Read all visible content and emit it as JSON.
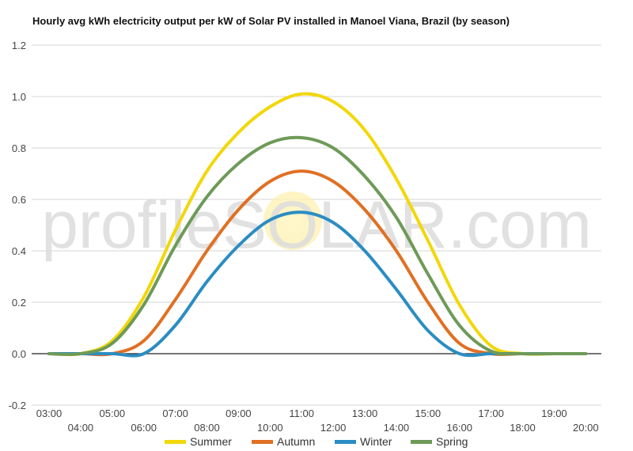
{
  "chart_data": {
    "type": "line",
    "title": "Hourly avg kWh electricity output per kW of Solar PV installed in Manoel Viana, Brazil (by season)",
    "watermark": "profileSOLAR.com",
    "ylim": [
      -0.2,
      1.2
    ],
    "yticks": [
      "-0.2",
      "0.0",
      "0.2",
      "0.4",
      "0.6",
      "0.8",
      "1.0",
      "1.2"
    ],
    "ytick_values": [
      -0.2,
      0.0,
      0.2,
      0.4,
      0.6,
      0.8,
      1.0,
      1.2
    ],
    "categories": [
      "03:00",
      "04:00",
      "05:00",
      "06:00",
      "07:00",
      "08:00",
      "09:00",
      "10:00",
      "11:00",
      "12:00",
      "13:00",
      "14:00",
      "15:00",
      "16:00",
      "17:00",
      "18:00",
      "19:00",
      "20:00"
    ],
    "grid": true,
    "legend_position": "bottom",
    "series": [
      {
        "name": "Summer",
        "color": "#f2d70a",
        "values": [
          0.0,
          0.0,
          0.05,
          0.22,
          0.48,
          0.71,
          0.86,
          0.96,
          1.01,
          0.98,
          0.87,
          0.68,
          0.44,
          0.19,
          0.03,
          0.0,
          0.0,
          0.0
        ]
      },
      {
        "name": "Autumn",
        "color": "#e07024",
        "values": [
          0.0,
          0.0,
          0.0,
          0.05,
          0.21,
          0.4,
          0.56,
          0.67,
          0.71,
          0.67,
          0.56,
          0.4,
          0.2,
          0.04,
          0.0,
          0.0,
          0.0,
          0.0
        ]
      },
      {
        "name": "Winter",
        "color": "#2b8dc3",
        "values": [
          0.0,
          0.0,
          0.0,
          0.0,
          0.11,
          0.28,
          0.42,
          0.52,
          0.55,
          0.51,
          0.4,
          0.25,
          0.09,
          0.0,
          0.0,
          0.0,
          0.0,
          0.0
        ]
      },
      {
        "name": "Spring",
        "color": "#6e9a58",
        "values": [
          0.0,
          0.0,
          0.04,
          0.19,
          0.42,
          0.61,
          0.74,
          0.82,
          0.84,
          0.8,
          0.69,
          0.53,
          0.31,
          0.11,
          0.01,
          0.0,
          0.0,
          0.0
        ]
      }
    ]
  }
}
